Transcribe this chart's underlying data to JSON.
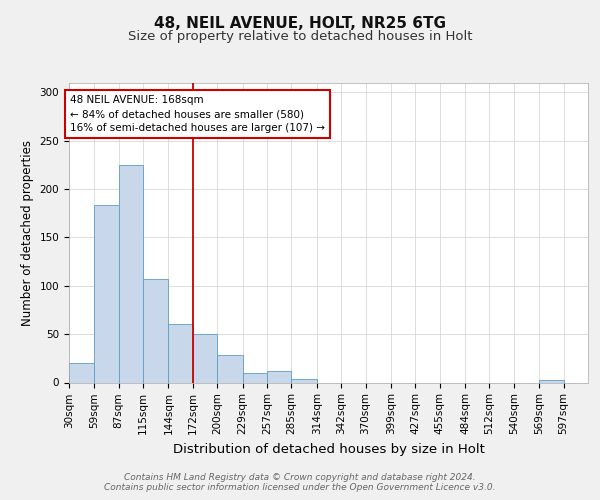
{
  "title1": "48, NEIL AVENUE, HOLT, NR25 6TG",
  "title2": "Size of property relative to detached houses in Holt",
  "xlabel": "Distribution of detached houses by size in Holt",
  "ylabel": "Number of detached properties",
  "bin_labels": [
    "30sqm",
    "59sqm",
    "87sqm",
    "115sqm",
    "144sqm",
    "172sqm",
    "200sqm",
    "229sqm",
    "257sqm",
    "285sqm",
    "314sqm",
    "342sqm",
    "370sqm",
    "399sqm",
    "427sqm",
    "455sqm",
    "484sqm",
    "512sqm",
    "540sqm",
    "569sqm",
    "597sqm"
  ],
  "bin_edges": [
    30,
    59,
    87,
    115,
    144,
    172,
    200,
    229,
    257,
    285,
    314,
    342,
    370,
    399,
    427,
    455,
    484,
    512,
    540,
    569,
    597
  ],
  "bar_heights": [
    20,
    183,
    225,
    107,
    60,
    50,
    28,
    10,
    12,
    4,
    0,
    0,
    0,
    0,
    0,
    0,
    0,
    0,
    0,
    3,
    0
  ],
  "bar_color": "#c8d8ea",
  "bar_edge_color": "#5a9ec8",
  "vline_color": "#cc0000",
  "vline_x_index": 5,
  "annotation_text": "48 NEIL AVENUE: 168sqm\n← 84% of detached houses are smaller (580)\n16% of semi-detached houses are larger (107) →",
  "annotation_box_color": "#ffffff",
  "annotation_box_edge": "#cc0000",
  "ylim": [
    0,
    310
  ],
  "yticks": [
    0,
    50,
    100,
    150,
    200,
    250,
    300
  ],
  "footnote": "Contains HM Land Registry data © Crown copyright and database right 2024.\nContains public sector information licensed under the Open Government Licence v3.0.",
  "background_color": "#f0f0f0",
  "plot_bg_color": "#ffffff",
  "title1_fontsize": 11,
  "title2_fontsize": 9.5,
  "xlabel_fontsize": 9.5,
  "ylabel_fontsize": 8.5,
  "tick_fontsize": 7.5,
  "footnote_fontsize": 6.5,
  "ann_fontsize": 7.5
}
